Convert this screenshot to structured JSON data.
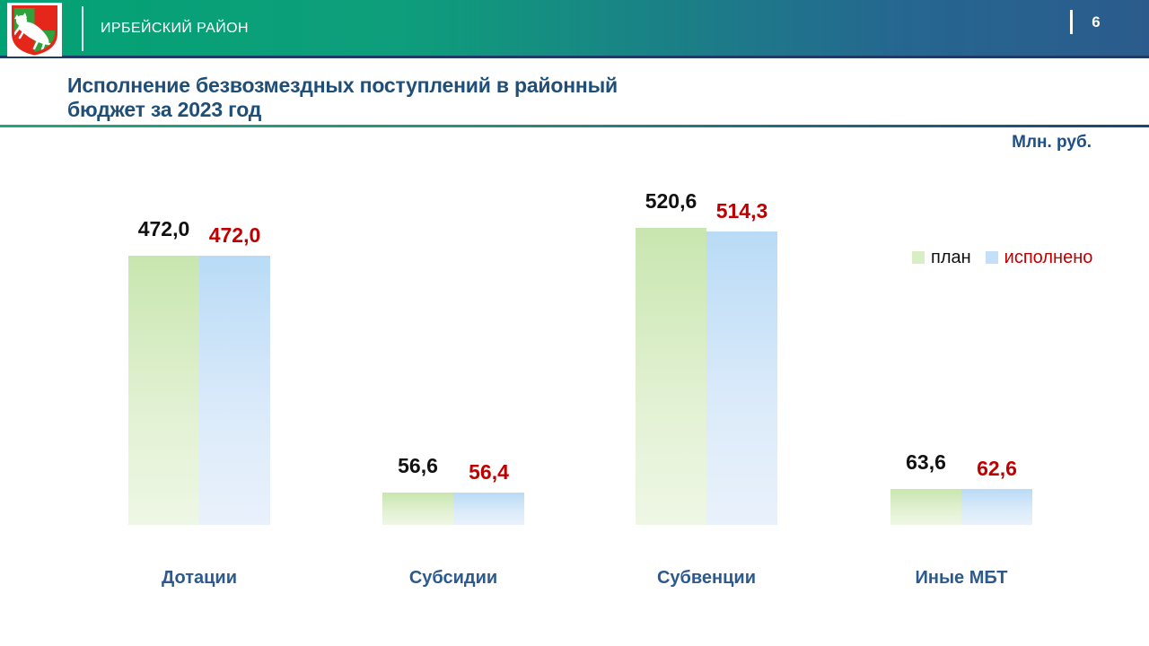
{
  "header": {
    "district": "ИРБЕЙСКИЙ РАЙОН",
    "page_number": "6",
    "logo": "coat-of-arms-irbeysky-district"
  },
  "title": {
    "line1": "Исполнение безвозмездных поступлений в районный",
    "line2": "бюджет за 2023 год"
  },
  "units_label": "Млн. руб.",
  "legend": {
    "plan": "план",
    "executed": "исполнено"
  },
  "colors": {
    "header_green": "#03a274",
    "header_blue": "#2b5b8c",
    "title_blue": "#1f4e79",
    "category_blue": "#2d5a8e",
    "plan_bar": "#c8e6af",
    "executed_bar": "#b9dbf6",
    "executed_value_red": "#c00000"
  },
  "chart_data": {
    "type": "bar",
    "title": "Исполнение безвозмездных поступлений в районный бюджет за 2023 год",
    "ylabel": "Млн. руб.",
    "categories": [
      "Дотации",
      "Субсидии",
      "Субвенции",
      "Иные МБТ"
    ],
    "series": [
      {
        "name": "план",
        "values": [
          472.0,
          56.6,
          520.6,
          63.6
        ],
        "labels": [
          "472,0",
          "56,6",
          "520,6",
          "63,6"
        ],
        "label_color": "black"
      },
      {
        "name": "исполнено",
        "values": [
          472.0,
          56.4,
          514.3,
          62.6
        ],
        "labels": [
          "472,0",
          "56,4",
          "514,3",
          "62,6"
        ],
        "label_color": "red"
      }
    ],
    "ylim": [
      0,
      530
    ],
    "grid": false,
    "axes_visible": false,
    "legend_position": "right"
  }
}
